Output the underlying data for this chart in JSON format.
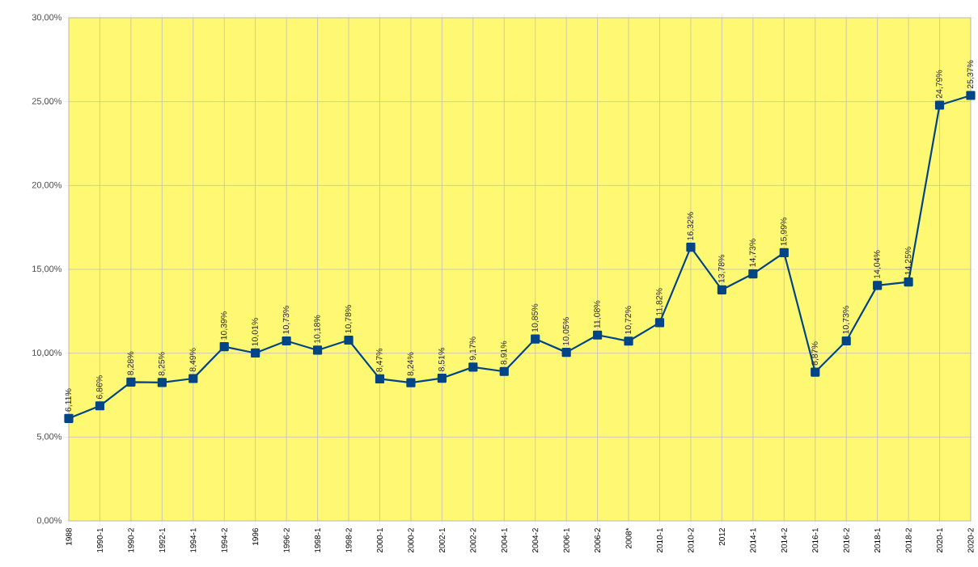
{
  "chart_data": {
    "type": "line",
    "categories": [
      "1988",
      "1990-1",
      "1990-2",
      "1992-1",
      "1994-1",
      "1994-2",
      "1996",
      "1996-2",
      "1998-1",
      "1998-2",
      "2000-1",
      "2000-2",
      "2002-1",
      "2002-2",
      "2004-1",
      "2004-2",
      "2006-1",
      "2006-2",
      "2008*",
      "2010-1",
      "2010-2",
      "2012",
      "2014-1",
      "2014-2",
      "2016-1",
      "2016-2",
      "2018-1",
      "2018-2",
      "2020-1",
      "2020-2"
    ],
    "series": [
      {
        "color": "#004586",
        "values": [
          6.11,
          6.86,
          8.28,
          8.25,
          8.49,
          10.39,
          10.01,
          10.73,
          10.18,
          10.78,
          8.47,
          8.24,
          8.51,
          9.17,
          8.91,
          10.85,
          10.05,
          11.08,
          10.72,
          11.82,
          16.32,
          13.78,
          14.73,
          15.99,
          8.87,
          10.73,
          14.04,
          14.25,
          24.79,
          25.37
        ],
        "value_labels": [
          "6,11%",
          "6,86%",
          "8,28%",
          "8,25%",
          "8,49%",
          "10,39%",
          "10,01%",
          "10,73%",
          "10,18%",
          "10,78%",
          "8,47%",
          "8,24%",
          "8,51%",
          "9,17%",
          "8,91%",
          "10,85%",
          "10,05%",
          "11,08%",
          "10,72%",
          "11,82%",
          "16,32%",
          "13,78%",
          "14,73%",
          "15,99%",
          "8,87%",
          "10,73%",
          "14,04%",
          "14,25%",
          "24,79%",
          "25,37%"
        ]
      }
    ],
    "ylim": [
      0,
      30
    ],
    "yticks": [
      {
        "value": 0,
        "label": "0,00%"
      },
      {
        "value": 5,
        "label": "5,00%"
      },
      {
        "value": 10,
        "label": "10,00%"
      },
      {
        "value": 15,
        "label": "15,00%"
      },
      {
        "value": 20,
        "label": "20,00%"
      },
      {
        "value": 25,
        "label": "25,00%"
      },
      {
        "value": 30,
        "label": "30,00%"
      }
    ],
    "grid": true,
    "marker": "square",
    "line_style": "solid"
  }
}
